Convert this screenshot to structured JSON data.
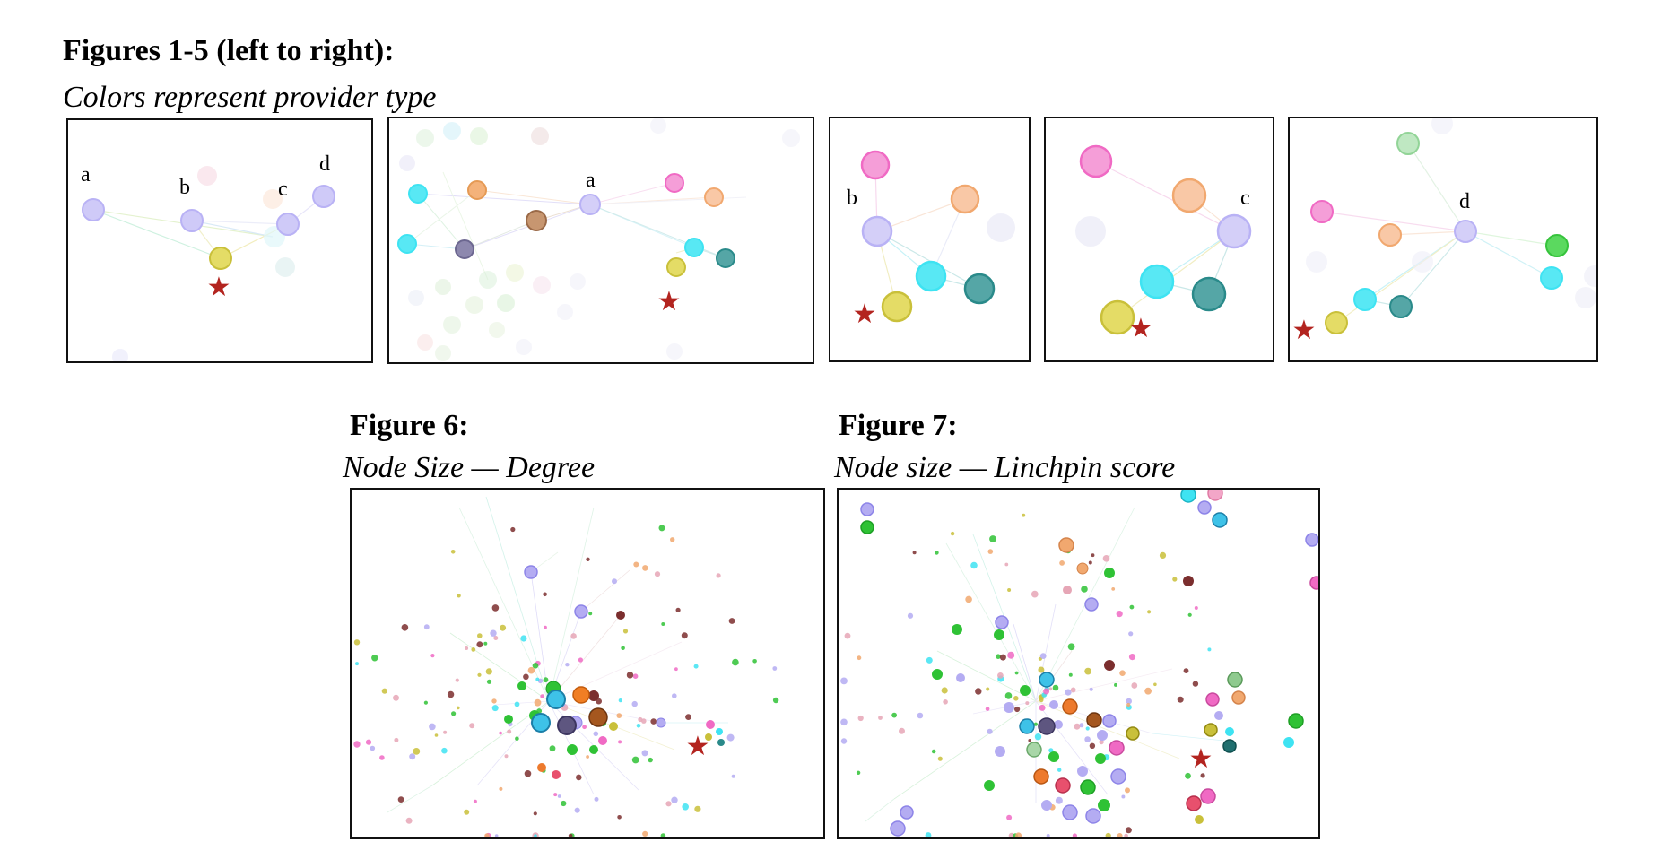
{
  "top": {
    "heading": "Figures 1-5 (left to right):",
    "subheading": "Colors represent provider type"
  },
  "fig6": {
    "heading": "Figure 6:",
    "subheading": "Node Size — Degree"
  },
  "fig7": {
    "heading": "Figure 7:",
    "subheading": "Node size — Linchpin score"
  },
  "node_labels": {
    "a": "a",
    "b": "b",
    "c": "c",
    "d": "d"
  },
  "colors": {
    "lavender": "#b9b2f5",
    "yellow": "#c9c03a",
    "cyan": "#3ee3f2",
    "teal": "#2a8a8a",
    "orange": "#f1a86f",
    "pink": "#f06ac4",
    "brown": "#9b6a48",
    "slate": "#6c6790",
    "green": "#36c33c",
    "star": "#b3241f"
  }
}
